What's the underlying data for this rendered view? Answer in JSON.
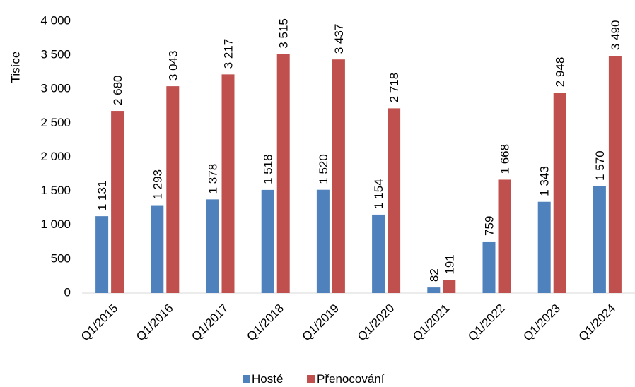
{
  "chart_data": {
    "type": "bar",
    "ylabel": "Tisíce",
    "ylim": [
      0,
      4000
    ],
    "yticks": [
      0,
      500,
      1000,
      1500,
      2000,
      2500,
      3000,
      3500,
      4000
    ],
    "ytick_labels": [
      "0",
      "500",
      "1 000",
      "1 500",
      "2 000",
      "2 500",
      "3 000",
      "3 500",
      "4 000"
    ],
    "grid": false,
    "legend_position": "bottom",
    "categories": [
      "Q1/2015",
      "Q1/2016",
      "Q1/2017",
      "Q1/2018",
      "Q1/2019",
      "Q1/2020",
      "Q1/2021",
      "Q1/2022",
      "Q1/2023",
      "Q1/2024"
    ],
    "series": [
      {
        "name": "Hosté",
        "color": "#4f81bd",
        "values": [
          1131,
          1293,
          1378,
          1518,
          1520,
          1154,
          82,
          759,
          1343,
          1570
        ],
        "labels": [
          "1 131",
          "1 293",
          "1 378",
          "1 518",
          "1 520",
          "1 154",
          "82",
          "759",
          "1 343",
          "1 570"
        ]
      },
      {
        "name": "Přenocování",
        "color": "#c0504d",
        "values": [
          2680,
          3043,
          3217,
          3515,
          3437,
          2718,
          191,
          1668,
          2948,
          3490
        ],
        "labels": [
          "2 680",
          "3 043",
          "3 217",
          "3 515",
          "3 437",
          "2 718",
          "191",
          "1 668",
          "2 948",
          "3 490"
        ]
      }
    ]
  }
}
